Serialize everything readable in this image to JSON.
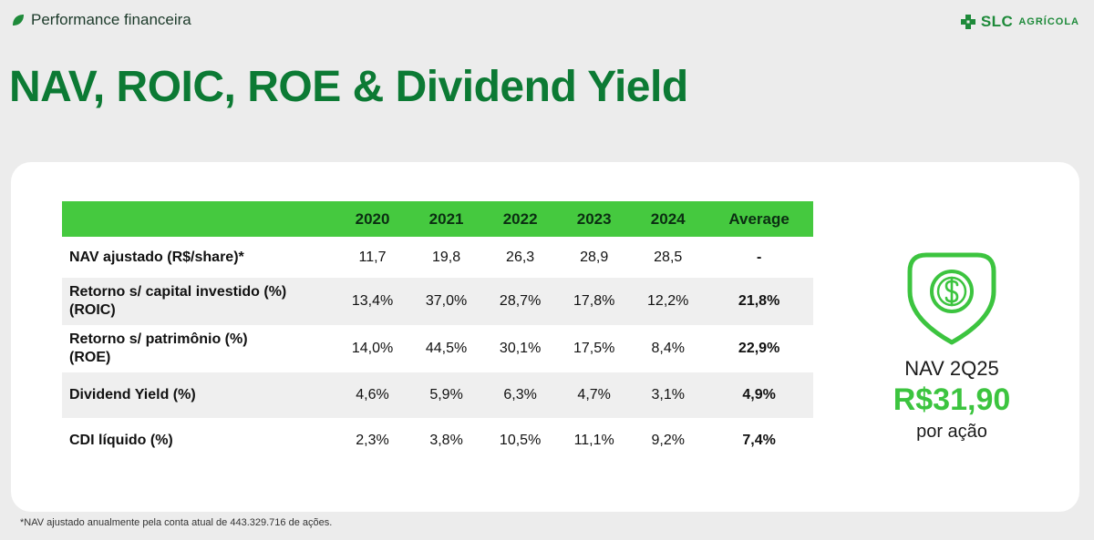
{
  "header": {
    "section_label": "Performance financeira",
    "title": "NAV, ROIC, ROE & Dividend Yield",
    "logo_brand": "SLC",
    "logo_sub": "AGRÍCOLA"
  },
  "table": {
    "columns": [
      "2020",
      "2021",
      "2022",
      "2023",
      "2024",
      "Average"
    ],
    "rows": [
      {
        "label_line1": "NAV ajustado (R$/share)*",
        "label_line2": "",
        "values": [
          "11,7",
          "19,8",
          "26,3",
          "28,9",
          "28,5",
          "-"
        ]
      },
      {
        "label_line1": "Retorno s/ capital investido (%)",
        "label_line2": "(ROIC)",
        "values": [
          "13,4%",
          "37,0%",
          "28,7%",
          "17,8%",
          "12,2%",
          "21,8%"
        ]
      },
      {
        "label_line1": "Retorno s/ patrimônio (%)",
        "label_line2": "(ROE)",
        "values": [
          "14,0%",
          "44,5%",
          "30,1%",
          "17,5%",
          "8,4%",
          "22,9%"
        ]
      },
      {
        "label_line1": "Dividend Yield (%)",
        "label_line2": "",
        "values": [
          "4,6%",
          "5,9%",
          "6,3%",
          "4,7%",
          "3,1%",
          "4,9%"
        ]
      },
      {
        "label_line1": "CDI líquido (%)",
        "label_line2": "",
        "values": [
          "2,3%",
          "3,8%",
          "10,5%",
          "11,1%",
          "9,2%",
          "7,4%"
        ]
      }
    ]
  },
  "nav_highlight": {
    "label": "NAV 2Q25",
    "value": "R$31,90",
    "unit": "por ação",
    "icon": "dollar-coin-icon"
  },
  "footnote": "*NAV ajustado anualmente pela conta atual de 443.329.716 de ações.",
  "colors": {
    "brand_dark_green": "#0c7a34",
    "header_green": "#45c93f",
    "accent_green": "#3cc43f"
  }
}
